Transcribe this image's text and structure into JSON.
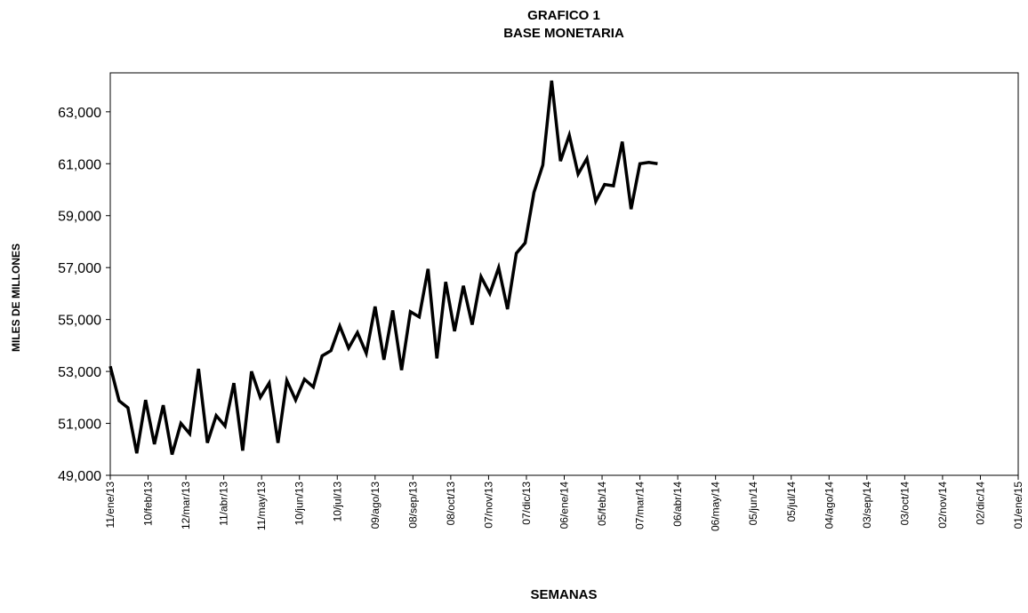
{
  "chart_data": {
    "type": "line",
    "title": "GRAFICO 1",
    "subtitle": "BASE MONETARIA",
    "x_label": "SEMANAS",
    "y_label": "MILES DE MILLONES",
    "x": [
      "2013-01-11",
      "2013-01-18",
      "2013-01-25",
      "2013-02-01",
      "2013-02-08",
      "2013-02-15",
      "2013-02-22",
      "2013-03-01",
      "2013-03-08",
      "2013-03-15",
      "2013-03-22",
      "2013-03-29",
      "2013-04-05",
      "2013-04-12",
      "2013-04-19",
      "2013-04-26",
      "2013-05-03",
      "2013-05-10",
      "2013-05-17",
      "2013-05-24",
      "2013-05-31",
      "2013-06-07",
      "2013-06-14",
      "2013-06-21",
      "2013-06-28",
      "2013-07-05",
      "2013-07-12",
      "2013-07-19",
      "2013-07-26",
      "2013-08-02",
      "2013-08-09",
      "2013-08-16",
      "2013-08-23",
      "2013-08-30",
      "2013-09-06",
      "2013-09-13",
      "2013-09-20",
      "2013-09-27",
      "2013-10-04",
      "2013-10-11",
      "2013-10-18",
      "2013-10-25",
      "2013-11-01",
      "2013-11-08",
      "2013-11-15",
      "2013-11-22",
      "2013-11-29",
      "2013-12-06",
      "2013-12-13",
      "2013-12-20",
      "2013-12-27",
      "2014-01-03",
      "2014-01-10",
      "2014-01-17",
      "2014-01-24",
      "2014-01-31",
      "2014-02-07",
      "2014-02-14",
      "2014-02-21",
      "2014-02-28",
      "2014-03-07",
      "2014-03-14",
      "2014-03-21"
    ],
    "series": [
      {
        "name": "BASE MONETARIA",
        "color": "#000000",
        "values": [
          53200,
          51870,
          51600,
          49850,
          51900,
          50200,
          51700,
          49800,
          51000,
          50600,
          53100,
          50250,
          51300,
          50900,
          52550,
          49950,
          53000,
          52000,
          52550,
          50250,
          52650,
          51900,
          52700,
          52400,
          53600,
          53800,
          54750,
          53900,
          54500,
          53700,
          55500,
          53450,
          55350,
          53050,
          55300,
          55100,
          56950,
          53500,
          56450,
          54550,
          56300,
          54800,
          56650,
          56000,
          57000,
          55400,
          57550,
          57950,
          59900,
          60950,
          64200,
          61100,
          62100,
          60600,
          61200,
          59550,
          60200,
          60150,
          61850,
          59250,
          61000,
          61050,
          61000
        ]
      }
    ],
    "xlim": [
      "2013-01-11",
      "2015-01-01"
    ],
    "xticks": [
      {
        "value": "2013-01-11",
        "label": "11/ene/13"
      },
      {
        "value": "2013-02-10",
        "label": "10/feb/13"
      },
      {
        "value": "2013-03-12",
        "label": "12/mar/13"
      },
      {
        "value": "2013-04-11",
        "label": "11/abr/13"
      },
      {
        "value": "2013-05-11",
        "label": "11/may/13"
      },
      {
        "value": "2013-06-10",
        "label": "10/jun/13"
      },
      {
        "value": "2013-07-10",
        "label": "10/jul/13"
      },
      {
        "value": "2013-08-09",
        "label": "09/ago/13"
      },
      {
        "value": "2013-09-08",
        "label": "08/sep/13"
      },
      {
        "value": "2013-10-08",
        "label": "08/oct/13"
      },
      {
        "value": "2013-11-07",
        "label": "07/nov/13"
      },
      {
        "value": "2013-12-07",
        "label": "07/dic/13"
      },
      {
        "value": "2014-01-06",
        "label": "06/ene/14"
      },
      {
        "value": "2014-02-05",
        "label": "05/feb/14"
      },
      {
        "value": "2014-03-07",
        "label": "07/mar/14"
      },
      {
        "value": "2014-04-06",
        "label": "06/abr/14"
      },
      {
        "value": "2014-05-06",
        "label": "06/may/14"
      },
      {
        "value": "2014-06-05",
        "label": "05/jun/14"
      },
      {
        "value": "2014-07-05",
        "label": "05/jul/14"
      },
      {
        "value": "2014-08-04",
        "label": "04/ago/14"
      },
      {
        "value": "2014-09-03",
        "label": "03/sep/14"
      },
      {
        "value": "2014-10-03",
        "label": "03/oct/14"
      },
      {
        "value": "2014-11-02",
        "label": "02/nov/14"
      },
      {
        "value": "2014-12-02",
        "label": "02/dic/14"
      },
      {
        "value": "2015-01-01",
        "label": "01/ene/15"
      }
    ],
    "ylim": [
      49000,
      64500
    ],
    "yticks": [
      {
        "value": 49000,
        "label": "49,000"
      },
      {
        "value": 51000,
        "label": "51,000"
      },
      {
        "value": 53000,
        "label": "53,000"
      },
      {
        "value": 55000,
        "label": "55,000"
      },
      {
        "value": 57000,
        "label": "57,000"
      },
      {
        "value": 59000,
        "label": "59,000"
      },
      {
        "value": 61000,
        "label": "61,000"
      },
      {
        "value": 63000,
        "label": "63,000"
      }
    ],
    "grid": false
  }
}
